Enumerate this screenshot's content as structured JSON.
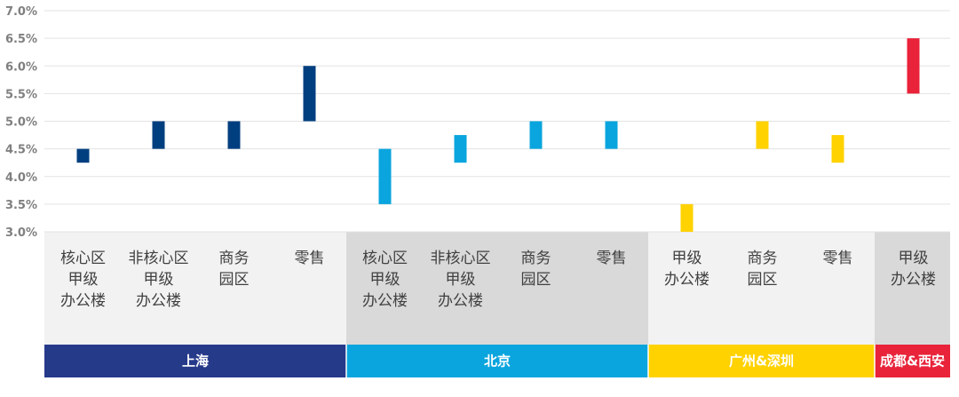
{
  "chart_data": {
    "type": "bar",
    "subtype": "floating-range",
    "y_format": "percent",
    "ylim": [
      3.0,
      7.0
    ],
    "y_ticks": [
      "7.0%",
      "6.5%",
      "6.0%",
      "5.5%",
      "5.0%",
      "4.5%",
      "4.0%",
      "3.5%",
      "3.0%"
    ],
    "grid": true,
    "groups": [
      {
        "city": "上海",
        "color": "#003f7f",
        "header_color": "#263a8a",
        "panel_color": "#f2f2f2",
        "categories": [
          {
            "label_lines": [
              "核心区",
              "甲级",
              "办公楼"
            ],
            "low": 4.25,
            "high": 4.5
          },
          {
            "label_lines": [
              "非核心区",
              "甲级",
              "办公楼"
            ],
            "low": 4.5,
            "high": 5.0
          },
          {
            "label_lines": [
              "商务",
              "园区"
            ],
            "low": 4.5,
            "high": 5.0
          },
          {
            "label_lines": [
              "零售"
            ],
            "low": 5.0,
            "high": 6.0
          }
        ]
      },
      {
        "city": "北京",
        "color": "#0aa5de",
        "header_color": "#0aa5de",
        "panel_color": "#d9d9d9",
        "categories": [
          {
            "label_lines": [
              "核心区",
              "甲级",
              "办公楼"
            ],
            "low": 3.5,
            "high": 4.5
          },
          {
            "label_lines": [
              "非核心区",
              "甲级",
              "办公楼"
            ],
            "low": 4.25,
            "high": 4.75
          },
          {
            "label_lines": [
              "商务",
              "园区"
            ],
            "low": 4.5,
            "high": 5.0
          },
          {
            "label_lines": [
              "零售"
            ],
            "low": 4.5,
            "high": 5.0
          }
        ]
      },
      {
        "city": "广州&深圳",
        "color": "#ffd200",
        "header_color": "#ffd200",
        "panel_color": "#f2f2f2",
        "categories": [
          {
            "label_lines": [
              "甲级",
              "办公楼"
            ],
            "low": 3.0,
            "high": 3.5
          },
          {
            "label_lines": [
              "商务",
              "园区"
            ],
            "low": 4.5,
            "high": 5.0
          },
          {
            "label_lines": [
              "零售"
            ],
            "low": 4.25,
            "high": 4.75
          }
        ]
      },
      {
        "city": "成都&西安",
        "color": "#e8233a",
        "header_color": "#e8233a",
        "panel_color": "#d9d9d9",
        "categories": [
          {
            "label_lines": [
              "甲级",
              "办公楼"
            ],
            "low": 5.5,
            "high": 6.5
          }
        ]
      }
    ]
  }
}
